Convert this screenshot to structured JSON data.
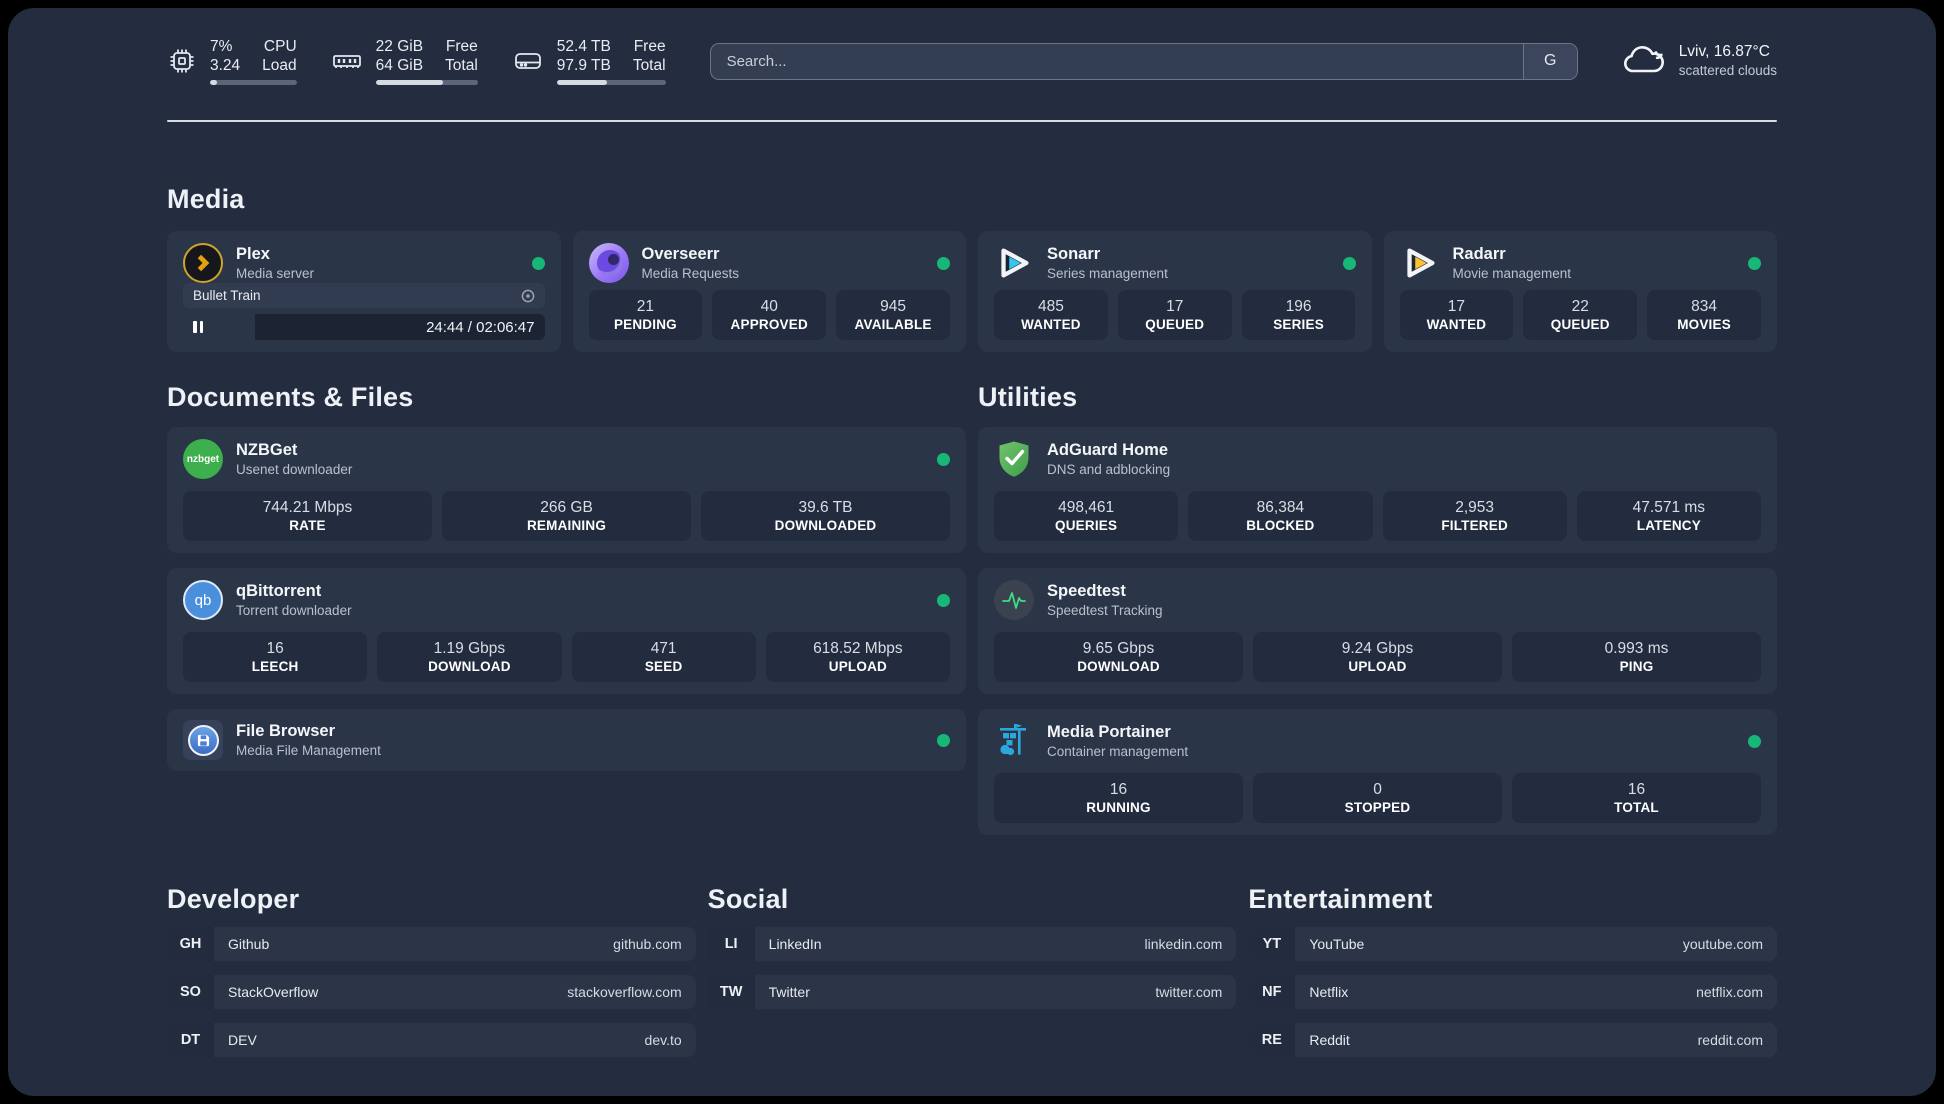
{
  "colors": {
    "status_online": "#17b877",
    "plex_accent": "#e5a00d",
    "sonarr_accent": "#35c5f4",
    "radarr_accent": "#ffc230",
    "qbittorrent_accent": "#4a8fdc",
    "nzbget_accent": "#3daf4c",
    "adguard_accent": "#57b44f",
    "speedtest_accent": "#3ddc84",
    "portainer_accent": "#2aa7dd"
  },
  "topbar": {
    "cpu": {
      "primary": "7%",
      "secondary": "3.24",
      "label_primary": "CPU",
      "label_secondary": "Load",
      "progress": 8
    },
    "memory": {
      "primary": "22 GiB",
      "secondary": "64 GiB",
      "label_primary": "Free",
      "label_secondary": "Total",
      "progress": 66
    },
    "storage": {
      "primary": "52.4 TB",
      "secondary": "97.9 TB",
      "label_primary": "Free",
      "label_secondary": "Total",
      "progress": 46
    },
    "search": {
      "placeholder": "Search...",
      "engine_button": "G"
    },
    "weather": {
      "location_temp": "Lviv, 16.87°C",
      "condition": "scattered clouds"
    }
  },
  "sections": {
    "media": {
      "title": "Media",
      "cards": {
        "plex": {
          "name": "Plex",
          "description": "Media server",
          "now_playing": {
            "title": "Bullet Train",
            "time": "24:44 / 02:06:47",
            "progress": 20
          }
        },
        "overseerr": {
          "name": "Overseerr",
          "description": "Media Requests",
          "stats": [
            {
              "value": "21",
              "label": "PENDING"
            },
            {
              "value": "40",
              "label": "APPROVED"
            },
            {
              "value": "945",
              "label": "AVAILABLE"
            }
          ]
        },
        "sonarr": {
          "name": "Sonarr",
          "description": "Series management",
          "stats": [
            {
              "value": "485",
              "label": "WANTED"
            },
            {
              "value": "17",
              "label": "QUEUED"
            },
            {
              "value": "196",
              "label": "SERIES"
            }
          ]
        },
        "radarr": {
          "name": "Radarr",
          "description": "Movie management",
          "stats": [
            {
              "value": "17",
              "label": "WANTED"
            },
            {
              "value": "22",
              "label": "QUEUED"
            },
            {
              "value": "834",
              "label": "MOVIES"
            }
          ]
        }
      }
    },
    "documents": {
      "title": "Documents & Files",
      "cards": {
        "nzbget": {
          "name": "NZBGet",
          "description": "Usenet downloader",
          "stats": [
            {
              "value": "744.21 Mbps",
              "label": "RATE"
            },
            {
              "value": "266 GB",
              "label": "REMAINING"
            },
            {
              "value": "39.6 TB",
              "label": "DOWNLOADED"
            }
          ]
        },
        "qbittorrent": {
          "name": "qBittorrent",
          "description": "Torrent downloader",
          "stats": [
            {
              "value": "16",
              "label": "LEECH"
            },
            {
              "value": "1.19 Gbps",
              "label": "DOWNLOAD"
            },
            {
              "value": "471",
              "label": "SEED"
            },
            {
              "value": "618.52 Mbps",
              "label": "UPLOAD"
            }
          ]
        },
        "filebrowser": {
          "name": "File Browser",
          "description": "Media File Management"
        }
      }
    },
    "utilities": {
      "title": "Utilities",
      "cards": {
        "adguard": {
          "name": "AdGuard Home",
          "description": "DNS and adblocking",
          "stats": [
            {
              "value": "498,461",
              "label": "QUERIES"
            },
            {
              "value": "86,384",
              "label": "BLOCKED"
            },
            {
              "value": "2,953",
              "label": "FILTERED"
            },
            {
              "value": "47.571 ms",
              "label": "LATENCY"
            }
          ]
        },
        "speedtest": {
          "name": "Speedtest",
          "description": "Speedtest Tracking",
          "stats": [
            {
              "value": "9.65 Gbps",
              "label": "DOWNLOAD"
            },
            {
              "value": "9.24 Gbps",
              "label": "UPLOAD"
            },
            {
              "value": "0.993 ms",
              "label": "PING"
            }
          ]
        },
        "portainer": {
          "name": "Media Portainer",
          "description": "Container management",
          "stats": [
            {
              "value": "16",
              "label": "RUNNING"
            },
            {
              "value": "0",
              "label": "STOPPED"
            },
            {
              "value": "16",
              "label": "TOTAL"
            }
          ]
        }
      }
    },
    "bookmarks": [
      {
        "title": "Developer",
        "items": [
          {
            "tag": "GH",
            "name": "Github",
            "url": "github.com"
          },
          {
            "tag": "SO",
            "name": "StackOverflow",
            "url": "stackoverflow.com"
          },
          {
            "tag": "DT",
            "name": "DEV",
            "url": "dev.to"
          }
        ]
      },
      {
        "title": "Social",
        "items": [
          {
            "tag": "LI",
            "name": "LinkedIn",
            "url": "linkedin.com"
          },
          {
            "tag": "TW",
            "name": "Twitter",
            "url": "twitter.com"
          }
        ]
      },
      {
        "title": "Entertainment",
        "items": [
          {
            "tag": "YT",
            "name": "YouTube",
            "url": "youtube.com"
          },
          {
            "tag": "NF",
            "name": "Netflix",
            "url": "netflix.com"
          },
          {
            "tag": "RE",
            "name": "Reddit",
            "url": "reddit.com"
          }
        ]
      }
    ]
  }
}
